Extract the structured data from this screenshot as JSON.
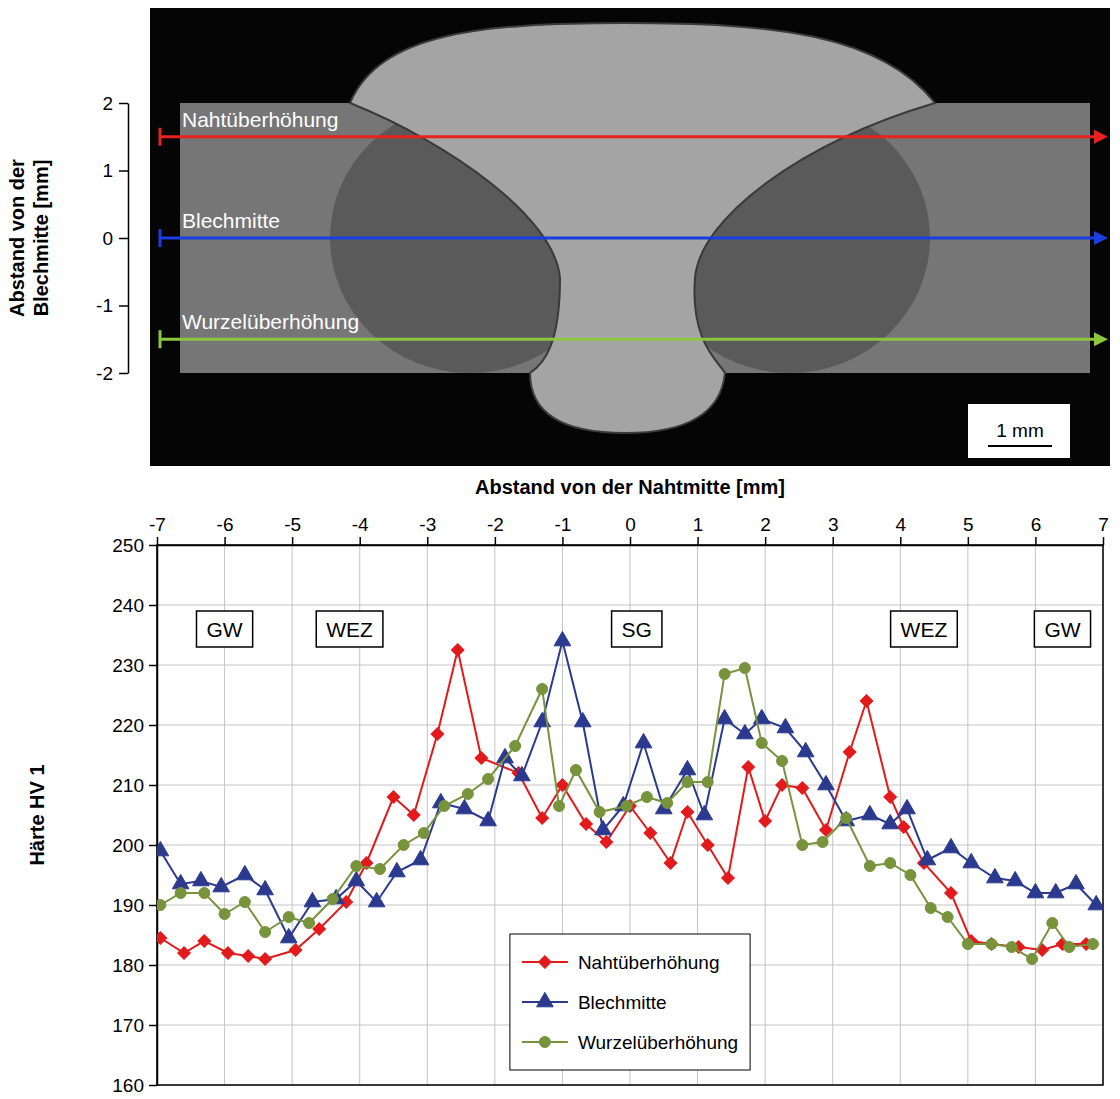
{
  "chart_data": [
    {
      "type": "image",
      "ylabel": "Abstand von der Blechmitte [mm]",
      "ylim": [
        -2,
        2
      ],
      "yticks": [
        -2,
        -1,
        0,
        1,
        2
      ],
      "lines": [
        {
          "name": "Nahtüberhöhung",
          "color": "#e8221e",
          "y": 1.5
        },
        {
          "name": "Blechmitte",
          "color": "#1a3fe0",
          "y": 0
        },
        {
          "name": "Wurzelüberhöhung",
          "color": "#8cc63f",
          "y": -1.5
        }
      ],
      "scale_bar": "1 mm"
    },
    {
      "type": "line",
      "xlabel": "Abstand von der Nahtmitte [mm]",
      "ylabel": "Härte HV 1",
      "xlim": [
        -7,
        7
      ],
      "xticks": [
        -7,
        -6,
        -5,
        -4,
        -3,
        -2,
        -1,
        0,
        1,
        2,
        3,
        4,
        5,
        6,
        7
      ],
      "ylim": [
        160,
        250
      ],
      "yticks": [
        160,
        170,
        180,
        190,
        200,
        210,
        220,
        230,
        240,
        250
      ],
      "grid": true,
      "legend": "lower center",
      "annotations": [
        {
          "text": "GW",
          "x": -6,
          "y": 236
        },
        {
          "text": "WEZ",
          "x": -4.15,
          "y": 236
        },
        {
          "text": "SG",
          "x": 0.1,
          "y": 236
        },
        {
          "text": "WEZ",
          "x": 4.35,
          "y": 236
        },
        {
          "text": "GW",
          "x": 6.4,
          "y": 236
        }
      ],
      "series": [
        {
          "name": "Nahtüberhöhung",
          "color": "#e31a1c",
          "marker": "diamond",
          "x": [
            -6.95,
            -6.6,
            -6.3,
            -5.95,
            -5.65,
            -5.4,
            -4.95,
            -4.6,
            -4.2,
            -3.9,
            -3.5,
            -3.2,
            -2.85,
            -2.55,
            -2.2,
            -1.65,
            -1.3,
            -1.0,
            -0.65,
            -0.35,
            0.0,
            0.3,
            0.6,
            0.85,
            1.15,
            1.45,
            1.75,
            2.0,
            2.25,
            2.55,
            2.9,
            3.25,
            3.5,
            3.85,
            4.05,
            4.35,
            4.75,
            5.05,
            5.35,
            5.75,
            6.1,
            6.4,
            6.75
          ],
          "values": [
            184.5,
            182,
            184,
            182,
            181.5,
            181,
            182.5,
            186,
            190.5,
            197,
            208,
            205,
            218.5,
            232.5,
            214.5,
            212,
            204.5,
            210,
            203.5,
            200.5,
            206.5,
            202,
            197,
            205.5,
            200,
            194.5,
            213,
            204,
            210,
            209.5,
            202.5,
            215.5,
            224,
            208,
            203,
            197,
            192,
            184,
            183.5,
            183,
            182.5,
            183.5,
            183.5
          ]
        },
        {
          "name": "Blechmitte",
          "color": "#2b3a8f",
          "marker": "triangle",
          "x": [
            -6.95,
            -6.65,
            -6.35,
            -6.05,
            -5.7,
            -5.4,
            -5.05,
            -4.7,
            -4.35,
            -4.05,
            -3.75,
            -3.45,
            -3.1,
            -2.8,
            -2.45,
            -2.1,
            -1.85,
            -1.6,
            -1.3,
            -1.0,
            -0.7,
            -0.4,
            -0.1,
            0.2,
            0.5,
            0.85,
            1.1,
            1.4,
            1.7,
            1.95,
            2.3,
            2.6,
            2.9,
            3.2,
            3.55,
            3.85,
            4.1,
            4.4,
            4.75,
            5.05,
            5.4,
            5.7,
            6.0,
            6.3,
            6.6,
            6.9
          ],
          "values": [
            199,
            193.5,
            194,
            193,
            195,
            192.5,
            184.5,
            190.5,
            191,
            194,
            190.5,
            195.5,
            197.5,
            207,
            206,
            204,
            214.5,
            211.5,
            220.5,
            234,
            220.5,
            202.5,
            206.5,
            217,
            206,
            212.5,
            205,
            221,
            218.5,
            221,
            219.5,
            215.5,
            210,
            204,
            205,
            203.5,
            206,
            197.5,
            199.5,
            197,
            194.5,
            194,
            192,
            192,
            193.5,
            190
          ]
        },
        {
          "name": "Wurzelüberhöhung",
          "color": "#77933c",
          "marker": "circle",
          "x": [
            -6.95,
            -6.65,
            -6.3,
            -6.0,
            -5.7,
            -5.4,
            -5.05,
            -4.75,
            -4.4,
            -4.05,
            -3.7,
            -3.35,
            -3.05,
            -2.75,
            -2.4,
            -2.1,
            -1.7,
            -1.3,
            -1.05,
            -0.8,
            -0.45,
            -0.05,
            0.25,
            0.55,
            0.85,
            1.15,
            1.4,
            1.7,
            1.95,
            2.25,
            2.55,
            2.85,
            3.2,
            3.55,
            3.85,
            4.15,
            4.45,
            4.7,
            5.0,
            5.35,
            5.65,
            5.95,
            6.25,
            6.5,
            6.85
          ],
          "values": [
            190,
            192,
            192,
            188.5,
            190.5,
            185.5,
            188,
            187,
            191,
            196.5,
            196,
            200,
            202,
            206.5,
            208.5,
            211,
            216.5,
            226,
            206.5,
            212.5,
            205.5,
            206.5,
            208,
            207,
            210.5,
            210.5,
            228.5,
            229.5,
            217,
            214,
            200,
            200.5,
            204.5,
            196.5,
            197,
            195,
            189.5,
            188,
            183.5,
            183.5,
            183,
            181,
            187,
            183,
            183.5
          ]
        }
      ]
    }
  ]
}
